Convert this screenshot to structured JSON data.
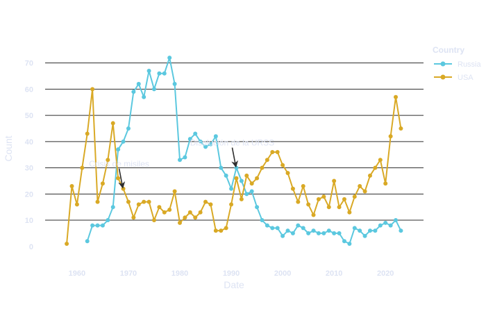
{
  "chart_data": {
    "type": "line",
    "title": "",
    "xlabel": "Date",
    "ylabel": "Count",
    "xlim": [
      1953.8,
      2027.4
    ],
    "ylim": [
      -3.5,
      76
    ],
    "x_ticks": [
      1960,
      1970,
      1980,
      1990,
      2000,
      2010,
      2020
    ],
    "y_ticks": [
      0,
      10,
      20,
      30,
      40,
      50,
      60,
      70
    ],
    "grid": "horizontal",
    "legend": {
      "title": "Country",
      "position": "right",
      "entries": [
        "Russia",
        "USA"
      ]
    },
    "colors": {
      "Russia": "#5bc8df",
      "USA": "#d9a925",
      "axis_text": "#dde3f3",
      "grid": "#2b2b2b",
      "arrow": "#2e2e2e"
    },
    "series": [
      {
        "name": "Russia",
        "color": "#5bc8df",
        "x": [
          1962,
          1963,
          1964,
          1965,
          1966,
          1967,
          1968,
          1969,
          1970,
          1971,
          1972,
          1973,
          1974,
          1975,
          1976,
          1977,
          1978,
          1979,
          1980,
          1981,
          1982,
          1983,
          1984,
          1985,
          1986,
          1987,
          1988,
          1989,
          1990,
          1991,
          1992,
          1993,
          1994,
          1995,
          1996,
          1997,
          1998,
          1999,
          2000,
          2001,
          2002,
          2003,
          2004,
          2005,
          2006,
          2007,
          2008,
          2009,
          2010,
          2011,
          2012,
          2013,
          2014,
          2015,
          2016,
          2017,
          2018,
          2019,
          2020,
          2021,
          2022,
          2023
        ],
        "y": [
          2,
          8,
          8,
          8,
          10,
          15,
          37,
          40,
          45,
          59,
          62,
          57,
          67,
          60,
          66,
          66,
          72,
          62,
          33,
          34,
          41,
          43,
          40,
          38,
          39,
          42,
          30,
          27,
          22,
          30,
          25,
          20,
          21,
          15,
          10,
          8,
          7,
          7,
          4,
          6,
          5,
          8,
          7,
          5,
          6,
          5,
          5,
          6,
          5,
          5,
          2,
          1,
          7,
          6,
          4,
          6,
          6,
          8,
          9,
          8,
          10,
          6
        ]
      },
      {
        "name": "USA",
        "color": "#d9a925",
        "x": [
          1958,
          1959,
          1960,
          1961,
          1962,
          1963,
          1964,
          1965,
          1966,
          1967,
          1968,
          1969,
          1970,
          1971,
          1972,
          1973,
          1974,
          1975,
          1976,
          1977,
          1978,
          1979,
          1980,
          1981,
          1982,
          1983,
          1984,
          1985,
          1986,
          1987,
          1988,
          1989,
          1990,
          1991,
          1992,
          1993,
          1994,
          1995,
          1996,
          1997,
          1998,
          1999,
          2000,
          2001,
          2002,
          2003,
          2004,
          2005,
          2006,
          2007,
          2008,
          2009,
          2010,
          2011,
          2012,
          2013,
          2014,
          2015,
          2016,
          2017,
          2018,
          2019,
          2020,
          2021,
          2022,
          2023
        ],
        "y": [
          1,
          23,
          16,
          30,
          43,
          60,
          17,
          24,
          33,
          47,
          26,
          22,
          17,
          11,
          16,
          17,
          17,
          10,
          15,
          13,
          14,
          21,
          9,
          11,
          13,
          11,
          13,
          17,
          16,
          6,
          6,
          7,
          16,
          26,
          18,
          27,
          24,
          26,
          30,
          33,
          36,
          36,
          31,
          28,
          22,
          17,
          23,
          16,
          12,
          18,
          19,
          15,
          25,
          15,
          18,
          13,
          19,
          23,
          21,
          27,
          30,
          33,
          24,
          42,
          57,
          45
        ]
      }
    ],
    "annotations": [
      {
        "text": "Crisis de misiles",
        "arrow_x": 1969,
        "arrow_y": 22
      },
      {
        "text": "Disolución de la URSS",
        "arrow_x": 1991,
        "arrow_y": 30
      }
    ]
  }
}
